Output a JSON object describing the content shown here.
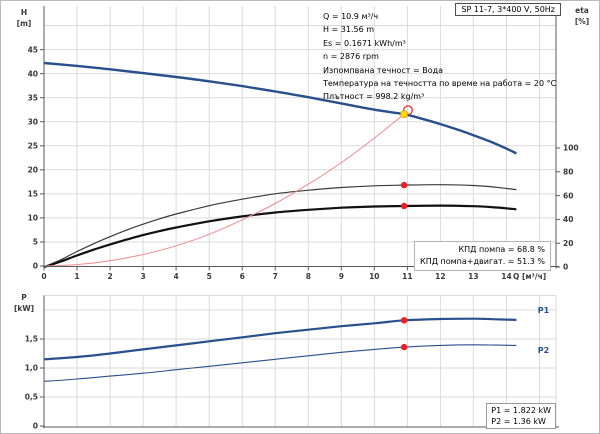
{
  "header": {
    "title": "SP 11-7, 3*400 V, 50Hz"
  },
  "info_block": {
    "lines": [
      "Q = 10.9 м³/ч",
      "H = 31.56 m",
      "Es = 0.1671 kWh/m³",
      "n = 2876 rpm",
      "Изпомпвана течност = Вода",
      "Температура на течността по време на работа = 20 °C",
      "Плътност = 998.2 kg/m³"
    ]
  },
  "efficiency_box": {
    "pump": "КПД помпа = 68.8 %",
    "pump_motor": "КПД помпа+двигат. = 51.3 %"
  },
  "power_box": {
    "p1": "P1 = 1.822 kW",
    "p2": "P2 = 1.36 kW"
  },
  "colors": {
    "curve_blue": "#28508c",
    "eff_pump": "#3a3a3a",
    "eff_pump_motor": "#111111",
    "system_red": "#f18a8a",
    "marker_red": "#ee1c23",
    "marker_yellow": "#ffd800",
    "grid": "#dadada",
    "axis": "#5a5a5a",
    "tick_text": "#3a3a3a"
  },
  "chart_data": [
    {
      "type": "line",
      "title": "SP 11-7, 3*400 V, 50Hz",
      "x_axis": {
        "label": "Q [м³/ч]",
        "min": 0,
        "max": 15.5,
        "grid_step": 1,
        "ticks": [
          0,
          1,
          2,
          3,
          4,
          5,
          6,
          7,
          8,
          9,
          10,
          11,
          12,
          13,
          14
        ]
      },
      "y_axis_left": {
        "name": "H",
        "unit": "[m]",
        "min": 0,
        "max": 54,
        "ticks": [
          0,
          5,
          10,
          15,
          20,
          25,
          30,
          35,
          40,
          45
        ],
        "grid": [
          5,
          10,
          15,
          20,
          25,
          30,
          35,
          40,
          45,
          50
        ]
      },
      "y_axis_right": {
        "name": "eta",
        "unit": "[%]",
        "min": 0,
        "max": 108,
        "ticks": [
          0,
          20,
          40,
          60,
          80,
          100
        ]
      },
      "series": [
        {
          "name": "head-curve",
          "axis": "left",
          "color": "#28508c",
          "width": 2.4,
          "points": [
            [
              0,
              42.2
            ],
            [
              1,
              41.6
            ],
            [
              2,
              40.9
            ],
            [
              3,
              40.1
            ],
            [
              4,
              39.3
            ],
            [
              5,
              38.4
            ],
            [
              6,
              37.4
            ],
            [
              7,
              36.3
            ],
            [
              8,
              35.1
            ],
            [
              9,
              33.8
            ],
            [
              10,
              32.5
            ],
            [
              10.9,
              31.56
            ],
            [
              11.5,
              30.5
            ],
            [
              12,
              29.5
            ],
            [
              12.5,
              28.4
            ],
            [
              13,
              27.2
            ],
            [
              13.5,
              25.9
            ],
            [
              14,
              24.4
            ],
            [
              14.3,
              23.4
            ]
          ]
        },
        {
          "name": "efficiency-pump",
          "axis": "right",
          "color": "#3a3a3a",
          "width": 1.2,
          "points": [
            [
              0,
              0
            ],
            [
              0.5,
              6
            ],
            [
              1,
              13
            ],
            [
              1.5,
              19.5
            ],
            [
              2,
              25.5
            ],
            [
              2.5,
              31
            ],
            [
              3,
              36
            ],
            [
              3.5,
              40.5
            ],
            [
              4,
              44.5
            ],
            [
              5,
              51.5
            ],
            [
              6,
              57
            ],
            [
              7,
              61.5
            ],
            [
              8,
              64.5
            ],
            [
              9,
              66.8
            ],
            [
              10,
              68.2
            ],
            [
              10.9,
              68.8
            ],
            [
              12,
              69.2
            ],
            [
              13,
              68.5
            ],
            [
              13.7,
              67
            ],
            [
              14.3,
              65
            ]
          ]
        },
        {
          "name": "efficiency-pump-motor",
          "axis": "right",
          "color": "#111111",
          "width": 2.2,
          "points": [
            [
              0,
              0
            ],
            [
              0.5,
              4.5
            ],
            [
              1,
              9.7
            ],
            [
              1.5,
              14.5
            ],
            [
              2,
              19
            ],
            [
              2.5,
              23
            ],
            [
              3,
              26.8
            ],
            [
              3.5,
              30.2
            ],
            [
              4,
              33.2
            ],
            [
              5,
              38.4
            ],
            [
              6,
              42.5
            ],
            [
              7,
              45.8
            ],
            [
              8,
              48.1
            ],
            [
              9,
              49.8
            ],
            [
              10,
              50.8
            ],
            [
              10.9,
              51.3
            ],
            [
              12,
              51.6
            ],
            [
              13,
              51.1
            ],
            [
              13.7,
              50
            ],
            [
              14.3,
              48.5
            ]
          ]
        },
        {
          "name": "system-curve",
          "axis": "left",
          "color": "#f18a8a",
          "width": 1,
          "points": [
            [
              0,
              0
            ],
            [
              1,
              0.3
            ],
            [
              2,
              1.1
            ],
            [
              3,
              2.4
            ],
            [
              4,
              4.2
            ],
            [
              5,
              6.6
            ],
            [
              6,
              9.6
            ],
            [
              7,
              13.0
            ],
            [
              8,
              17.0
            ],
            [
              9,
              21.5
            ],
            [
              10,
              26.6
            ],
            [
              10.9,
              31.56
            ]
          ]
        }
      ],
      "markers": [
        {
          "kind": "ring",
          "axis": "left",
          "q": 11.02,
          "v": 32.4,
          "color": "#ee1c23"
        },
        {
          "kind": "dot",
          "axis": "left",
          "q": 10.9,
          "v": 31.56,
          "color": "#ffd800"
        },
        {
          "kind": "dot",
          "axis": "right",
          "q": 10.9,
          "v": 68.8,
          "color": "#ee1c23"
        },
        {
          "kind": "dot",
          "axis": "right",
          "q": 10.9,
          "v": 51.3,
          "color": "#ee1c23"
        }
      ],
      "duty_point": {
        "q": 10.9,
        "h": 31.56,
        "eta_pump": 68.8,
        "eta_pump_motor": 51.3
      }
    },
    {
      "type": "line",
      "x_axis": {
        "label": "",
        "min": 0,
        "max": 15.5,
        "grid_step": 1,
        "ticks": []
      },
      "y_axis_left": {
        "name": "P",
        "unit": "[kW]",
        "min": 0,
        "max": 2.26,
        "ticks": [
          {
            "v": 0,
            "label": "0"
          },
          {
            "v": 0.5,
            "label": "0,5"
          },
          {
            "v": 1,
            "label": "1,0"
          },
          {
            "v": 1.5,
            "label": "1,5"
          }
        ],
        "grid": [
          0.5,
          1,
          1.5,
          2
        ]
      },
      "series": [
        {
          "name": "power-p1",
          "axis": "left",
          "color": "#28508c",
          "width": 2.2,
          "points": [
            [
              0,
              1.15
            ],
            [
              1,
              1.19
            ],
            [
              2,
              1.25
            ],
            [
              3,
              1.32
            ],
            [
              4,
              1.39
            ],
            [
              5,
              1.46
            ],
            [
              6,
              1.53
            ],
            [
              7,
              1.6
            ],
            [
              8,
              1.66
            ],
            [
              9,
              1.72
            ],
            [
              10,
              1.77
            ],
            [
              10.9,
              1.822
            ],
            [
              12,
              1.845
            ],
            [
              13,
              1.85
            ],
            [
              13.7,
              1.84
            ],
            [
              14.3,
              1.83
            ]
          ]
        },
        {
          "name": "power-p2",
          "axis": "left",
          "color": "#28508c",
          "width": 1.1,
          "points": [
            [
              0,
              0.77
            ],
            [
              1,
              0.81
            ],
            [
              2,
              0.86
            ],
            [
              3,
              0.91
            ],
            [
              4,
              0.97
            ],
            [
              5,
              1.03
            ],
            [
              6,
              1.09
            ],
            [
              7,
              1.15
            ],
            [
              8,
              1.21
            ],
            [
              9,
              1.27
            ],
            [
              10,
              1.32
            ],
            [
              10.9,
              1.36
            ],
            [
              12,
              1.39
            ],
            [
              13,
              1.4
            ],
            [
              13.7,
              1.395
            ],
            [
              14.3,
              1.39
            ]
          ]
        }
      ],
      "markers": [
        {
          "kind": "dot",
          "axis": "left",
          "q": 10.9,
          "v": 1.822,
          "color": "#ee1c23"
        },
        {
          "kind": "dot",
          "axis": "left",
          "q": 10.9,
          "v": 1.36,
          "color": "#ee1c23"
        }
      ],
      "series_labels": [
        {
          "text": "P1",
          "q": 14.95,
          "v": 1.95
        },
        {
          "text": "P2",
          "q": 14.95,
          "v": 1.26
        }
      ],
      "readout": {
        "p1_kw": 1.822,
        "p2_kw": 1.36
      }
    }
  ]
}
